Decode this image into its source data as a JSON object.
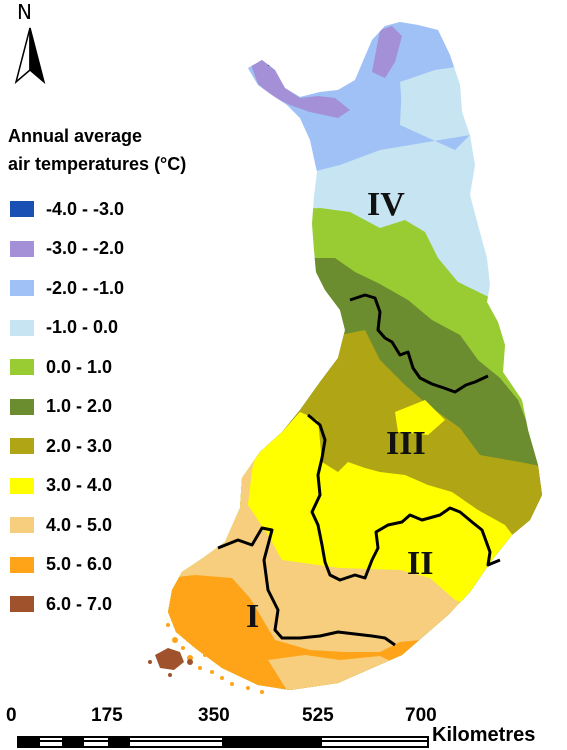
{
  "north": {
    "letter": "N"
  },
  "legend": {
    "title_line1": "Annual average",
    "title_line2": "air temperatures (°C)",
    "items": [
      {
        "label": "-4.0 - -3.0",
        "color": "#1a4fb3"
      },
      {
        "label": "-3.0 - -2.0",
        "color": "#a390d6"
      },
      {
        "label": "-2.0 - -1.0",
        "color": "#9fc1f5"
      },
      {
        "label": "-1.0 - 0.0",
        "color": "#c6e4f2"
      },
      {
        "label": "0.0 - 1.0",
        "color": "#99cc33"
      },
      {
        "label": "1.0 - 2.0",
        "color": "#6b8c2f"
      },
      {
        "label": "2.0 - 3.0",
        "color": "#b0a514"
      },
      {
        "label": "3.0 - 4.0",
        "color": "#ffff00"
      },
      {
        "label": "4.0 - 5.0",
        "color": "#f7ce7e"
      },
      {
        "label": "5.0 - 6.0",
        "color": "#ffa319"
      },
      {
        "label": "6.0 - 7.0",
        "color": "#a0522d"
      }
    ]
  },
  "zones": {
    "z1": "I",
    "z2": "II",
    "z3": "III",
    "z4": "IV"
  },
  "scale": {
    "ticks": [
      "0",
      "175",
      "350",
      "525",
      "700"
    ],
    "unit": "Kilometres"
  }
}
